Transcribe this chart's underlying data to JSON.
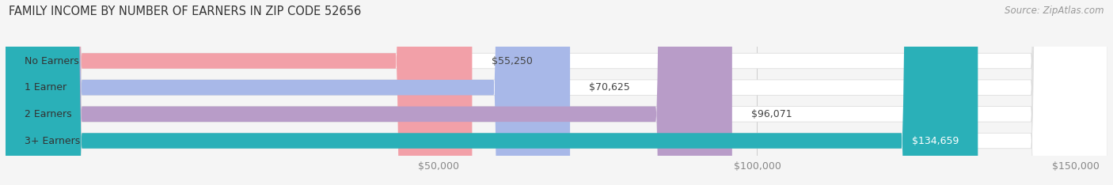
{
  "title": "FAMILY INCOME BY NUMBER OF EARNERS IN ZIP CODE 52656",
  "source": "Source: ZipAtlas.com",
  "categories": [
    "No Earners",
    "1 Earner",
    "2 Earners",
    "3+ Earners"
  ],
  "values": [
    55250,
    70625,
    96071,
    134659
  ],
  "bar_colors": [
    "#f2a0a8",
    "#a8b8e8",
    "#b89cc8",
    "#2ab0b8"
  ],
  "value_label_colors": [
    "#444444",
    "#444444",
    "#444444",
    "#ffffff"
  ],
  "value_labels": [
    "$55,250",
    "$70,625",
    "$96,071",
    "$134,659"
  ],
  "xmin": -18000,
  "xmax": 155000,
  "xticks": [
    50000,
    100000,
    150000
  ],
  "xtick_labels": [
    "$50,000",
    "$100,000",
    "$150,000"
  ],
  "background_color": "#f5f5f5",
  "bar_bg_color": "#e4e4e4",
  "bar_bg_edge_color": "#d8d8d8",
  "title_fontsize": 10.5,
  "source_fontsize": 8.5,
  "label_fontsize": 9,
  "value_fontsize": 9,
  "bar_height": 0.58,
  "figsize": [
    14.06,
    2.34
  ],
  "dpi": 100
}
